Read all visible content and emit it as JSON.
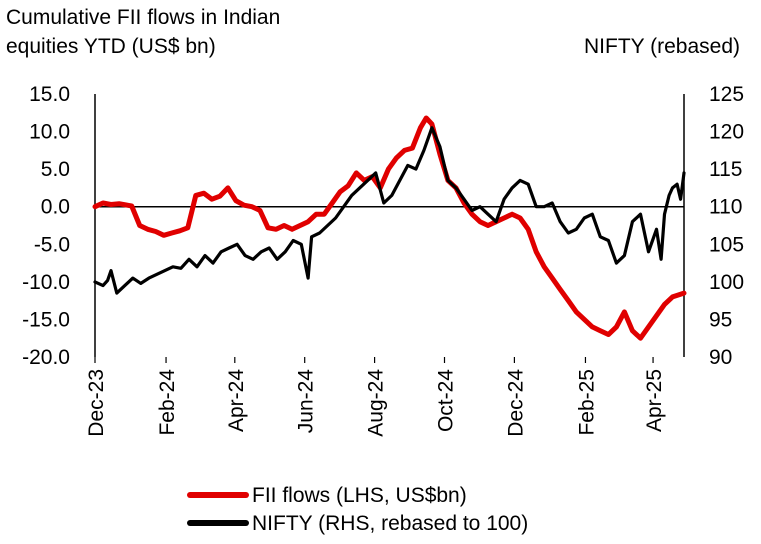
{
  "chart_data": {
    "type": "line",
    "title_left": [
      "Cumulative FII flows in Indian",
      "equities YTD (US$ bn)"
    ],
    "title_right": "NIFTY (rebased)",
    "x_tick_labels": [
      "Dec-23",
      "Feb-24",
      "Apr-24",
      "Jun-24",
      "Aug-24",
      "Oct-24",
      "Dec-24",
      "Feb-25",
      "Apr-25"
    ],
    "x_tick_dates": [
      "2023-12-01",
      "2024-02-01",
      "2024-04-01",
      "2024-06-01",
      "2024-08-01",
      "2024-10-01",
      "2024-12-01",
      "2025-02-01",
      "2025-04-01"
    ],
    "x_range": [
      "2023-12-01",
      "2025-04-28"
    ],
    "y_left": {
      "range": [
        -20,
        15
      ],
      "ticks": [
        15,
        10,
        5,
        0,
        -5,
        -10,
        -15,
        -20
      ],
      "tick_labels": [
        "15.0",
        "10.0",
        "5.0",
        "0.0",
        "-5.0",
        "-10.0",
        "-15.0",
        "-20.0"
      ]
    },
    "y_right": {
      "range": [
        90,
        125
      ],
      "ticks": [
        125,
        120,
        115,
        110,
        105,
        100,
        95,
        90
      ],
      "tick_labels": [
        "125",
        "120",
        "115",
        "110",
        "105",
        "100",
        "95",
        "90"
      ]
    },
    "zero_line": 0,
    "legend_placement": "bottom",
    "series": [
      {
        "name": "FII flows (LHS, US$bn)",
        "axis": "left",
        "color": "#e00000",
        "points": [
          [
            "2023-12-01",
            0.0
          ],
          [
            "2023-12-08",
            0.5
          ],
          [
            "2023-12-15",
            0.3
          ],
          [
            "2023-12-22",
            0.4
          ],
          [
            "2024-01-02",
            0.1
          ],
          [
            "2024-01-09",
            -2.5
          ],
          [
            "2024-01-16",
            -3.0
          ],
          [
            "2024-01-23",
            -3.3
          ],
          [
            "2024-01-30",
            -3.8
          ],
          [
            "2024-02-06",
            -3.5
          ],
          [
            "2024-02-13",
            -3.2
          ],
          [
            "2024-02-20",
            -2.8
          ],
          [
            "2024-02-27",
            1.5
          ],
          [
            "2024-03-05",
            1.8
          ],
          [
            "2024-03-12",
            1.0
          ],
          [
            "2024-03-19",
            1.4
          ],
          [
            "2024-03-26",
            2.5
          ],
          [
            "2024-04-02",
            0.8
          ],
          [
            "2024-04-09",
            0.2
          ],
          [
            "2024-04-16",
            0.0
          ],
          [
            "2024-04-23",
            -0.5
          ],
          [
            "2024-04-30",
            -2.8
          ],
          [
            "2024-05-07",
            -3.0
          ],
          [
            "2024-05-14",
            -2.5
          ],
          [
            "2024-05-21",
            -3.0
          ],
          [
            "2024-05-28",
            -2.5
          ],
          [
            "2024-06-04",
            -2.0
          ],
          [
            "2024-06-11",
            -1.0
          ],
          [
            "2024-06-18",
            -1.0
          ],
          [
            "2024-06-25",
            0.5
          ],
          [
            "2024-07-02",
            2.0
          ],
          [
            "2024-07-09",
            2.8
          ],
          [
            "2024-07-16",
            4.5
          ],
          [
            "2024-07-23",
            3.5
          ],
          [
            "2024-07-30",
            4.0
          ],
          [
            "2024-08-06",
            2.5
          ],
          [
            "2024-08-13",
            5.0
          ],
          [
            "2024-08-20",
            6.5
          ],
          [
            "2024-08-27",
            7.5
          ],
          [
            "2024-09-03",
            7.8
          ],
          [
            "2024-09-10",
            10.5
          ],
          [
            "2024-09-15",
            11.8
          ],
          [
            "2024-09-20",
            11.0
          ],
          [
            "2024-09-27",
            7.0
          ],
          [
            "2024-10-04",
            3.5
          ],
          [
            "2024-10-11",
            2.5
          ],
          [
            "2024-10-18",
            0.5
          ],
          [
            "2024-10-25",
            -1.0
          ],
          [
            "2024-11-01",
            -2.0
          ],
          [
            "2024-11-08",
            -2.5
          ],
          [
            "2024-11-15",
            -2.0
          ],
          [
            "2024-11-22",
            -1.5
          ],
          [
            "2024-11-29",
            -1.0
          ],
          [
            "2024-12-06",
            -1.5
          ],
          [
            "2024-12-13",
            -3.0
          ],
          [
            "2024-12-20",
            -6.0
          ],
          [
            "2024-12-27",
            -8.0
          ],
          [
            "2025-01-03",
            -9.5
          ],
          [
            "2025-01-10",
            -11.0
          ],
          [
            "2025-01-17",
            -12.5
          ],
          [
            "2025-01-24",
            -14.0
          ],
          [
            "2025-01-31",
            -15.0
          ],
          [
            "2025-02-07",
            -16.0
          ],
          [
            "2025-02-14",
            -16.5
          ],
          [
            "2025-02-21",
            -17.0
          ],
          [
            "2025-02-28",
            -16.0
          ],
          [
            "2025-03-07",
            -14.0
          ],
          [
            "2025-03-14",
            -16.5
          ],
          [
            "2025-03-21",
            -17.5
          ],
          [
            "2025-03-28",
            -16.0
          ],
          [
            "2025-04-04",
            -14.5
          ],
          [
            "2025-04-11",
            -13.0
          ],
          [
            "2025-04-18",
            -12.0
          ],
          [
            "2025-04-28",
            -11.5
          ]
        ]
      },
      {
        "name": "NIFTY (RHS, rebased to 100)",
        "axis": "right",
        "color": "#000000",
        "points": [
          [
            "2023-12-01",
            100.0
          ],
          [
            "2023-12-08",
            99.5
          ],
          [
            "2023-12-12",
            100.2
          ],
          [
            "2023-12-15",
            101.5
          ],
          [
            "2023-12-20",
            98.5
          ],
          [
            "2023-12-27",
            99.5
          ],
          [
            "2024-01-03",
            100.5
          ],
          [
            "2024-01-10",
            99.8
          ],
          [
            "2024-01-17",
            100.5
          ],
          [
            "2024-01-24",
            101.0
          ],
          [
            "2024-01-31",
            101.5
          ],
          [
            "2024-02-07",
            102.0
          ],
          [
            "2024-02-14",
            101.8
          ],
          [
            "2024-02-21",
            103.0
          ],
          [
            "2024-02-28",
            102.0
          ],
          [
            "2024-03-06",
            103.5
          ],
          [
            "2024-03-13",
            102.5
          ],
          [
            "2024-03-20",
            104.0
          ],
          [
            "2024-03-27",
            104.5
          ],
          [
            "2024-04-03",
            105.0
          ],
          [
            "2024-04-10",
            103.5
          ],
          [
            "2024-04-17",
            103.0
          ],
          [
            "2024-04-24",
            104.0
          ],
          [
            "2024-05-01",
            104.5
          ],
          [
            "2024-05-08",
            103.0
          ],
          [
            "2024-05-15",
            104.0
          ],
          [
            "2024-05-22",
            105.5
          ],
          [
            "2024-05-29",
            105.0
          ],
          [
            "2024-06-04",
            100.5
          ],
          [
            "2024-06-07",
            106.0
          ],
          [
            "2024-06-14",
            106.5
          ],
          [
            "2024-06-21",
            107.5
          ],
          [
            "2024-06-28",
            108.5
          ],
          [
            "2024-07-05",
            110.0
          ],
          [
            "2024-07-12",
            111.5
          ],
          [
            "2024-07-19",
            112.5
          ],
          [
            "2024-07-26",
            113.5
          ],
          [
            "2024-08-02",
            114.5
          ],
          [
            "2024-08-09",
            110.5
          ],
          [
            "2024-08-16",
            111.5
          ],
          [
            "2024-08-23",
            113.5
          ],
          [
            "2024-08-30",
            115.5
          ],
          [
            "2024-09-06",
            115.0
          ],
          [
            "2024-09-13",
            117.5
          ],
          [
            "2024-09-20",
            120.5
          ],
          [
            "2024-09-27",
            118.0
          ],
          [
            "2024-10-04",
            113.5
          ],
          [
            "2024-10-11",
            112.5
          ],
          [
            "2024-10-18",
            111.0
          ],
          [
            "2024-10-25",
            109.5
          ],
          [
            "2024-11-01",
            110.0
          ],
          [
            "2024-11-08",
            109.0
          ],
          [
            "2024-11-15",
            108.0
          ],
          [
            "2024-11-22",
            111.0
          ],
          [
            "2024-11-29",
            112.5
          ],
          [
            "2024-12-06",
            113.5
          ],
          [
            "2024-12-13",
            113.0
          ],
          [
            "2024-12-20",
            110.0
          ],
          [
            "2024-12-27",
            110.0
          ],
          [
            "2025-01-03",
            110.5
          ],
          [
            "2025-01-10",
            108.0
          ],
          [
            "2025-01-17",
            106.5
          ],
          [
            "2025-01-24",
            107.0
          ],
          [
            "2025-01-31",
            108.5
          ],
          [
            "2025-02-07",
            109.0
          ],
          [
            "2025-02-14",
            106.0
          ],
          [
            "2025-02-21",
            105.5
          ],
          [
            "2025-02-28",
            102.5
          ],
          [
            "2025-03-07",
            103.5
          ],
          [
            "2025-03-14",
            108.0
          ],
          [
            "2025-03-21",
            109.0
          ],
          [
            "2025-03-28",
            104.0
          ],
          [
            "2025-04-04",
            107.0
          ],
          [
            "2025-04-08",
            103.0
          ],
          [
            "2025-04-11",
            109.0
          ],
          [
            "2025-04-15",
            111.5
          ],
          [
            "2025-04-18",
            112.5
          ],
          [
            "2025-04-22",
            113.0
          ],
          [
            "2025-04-25",
            111.0
          ],
          [
            "2025-04-28",
            114.5
          ]
        ]
      }
    ]
  }
}
